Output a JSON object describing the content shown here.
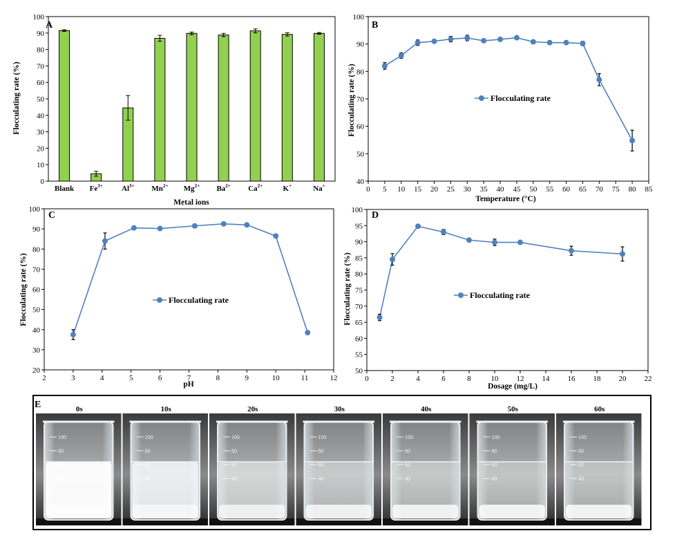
{
  "chart_data": [
    {
      "panel": "A",
      "type": "bar",
      "categories": [
        "Blank",
        "Fe",
        "Al",
        "Mn",
        "Mg",
        "Ba",
        "Ca",
        "K",
        "Na"
      ],
      "category_superscripts": [
        "",
        "3+",
        "3+",
        "2+",
        "2+",
        "2+",
        "2+",
        "+",
        "+"
      ],
      "values": [
        91.5,
        4.5,
        44.5,
        86.8,
        89.8,
        88.8,
        91.3,
        89.2,
        89.8
      ],
      "errors": [
        0.5,
        1.5,
        7.5,
        1.8,
        0.8,
        1.0,
        1.2,
        1.0,
        0.5
      ],
      "xlabel": "Metal ions",
      "ylabel": "Flocculating rate (%)",
      "ylim": [
        0,
        100
      ],
      "yticks": [
        0,
        10,
        20,
        30,
        40,
        50,
        60,
        70,
        80,
        90,
        100
      ],
      "bar_color": "#92d050"
    },
    {
      "panel": "B",
      "type": "line",
      "x": [
        5,
        10,
        15,
        20,
        25,
        30,
        35,
        40,
        45,
        50,
        55,
        60,
        65,
        70,
        80
      ],
      "values": [
        82,
        85.8,
        90.5,
        91,
        91.8,
        92.2,
        91.2,
        91.7,
        92.3,
        90.8,
        90.5,
        90.5,
        90.2,
        77,
        54.8
      ],
      "errors": [
        1.2,
        1.0,
        1.0,
        0.5,
        1.0,
        1.0,
        0.5,
        0.5,
        0.5,
        0.4,
        0.4,
        0.4,
        0.8,
        2.2,
        3.8
      ],
      "xlabel": "Temperature (°C)",
      "ylabel": "Flocculating rate (%)",
      "xlim": [
        0,
        85
      ],
      "ylim": [
        40,
        100
      ],
      "xticks": [
        0,
        5,
        10,
        15,
        20,
        25,
        30,
        35,
        40,
        45,
        50,
        55,
        60,
        65,
        70,
        75,
        80,
        85
      ],
      "yticks": [
        40,
        50,
        60,
        70,
        80,
        90,
        100
      ],
      "legend": "Flocculating rate",
      "line_color": "#4f81bd"
    },
    {
      "panel": "C",
      "type": "line",
      "x": [
        3,
        4.1,
        5.1,
        6,
        7.2,
        8.2,
        9,
        10,
        11.1
      ],
      "values": [
        37.5,
        84,
        90.5,
        90.2,
        91.5,
        92.5,
        92,
        86.5,
        38.5
      ],
      "errors": [
        2.5,
        4.0,
        0.5,
        0.5,
        0.5,
        0.5,
        0.5,
        0.5,
        0.5
      ],
      "xlabel": "pH",
      "ylabel": "Flocculating rate (%)",
      "xlim": [
        2,
        12
      ],
      "ylim": [
        20,
        100
      ],
      "xticks": [
        2,
        3,
        4,
        5,
        6,
        7,
        8,
        9,
        10,
        11,
        12
      ],
      "yticks": [
        20,
        30,
        40,
        50,
        60,
        70,
        80,
        90,
        100
      ],
      "legend": "Flocculating rate",
      "line_color": "#4f81bd"
    },
    {
      "panel": "D",
      "type": "line",
      "x": [
        1,
        2,
        4,
        6,
        8,
        10,
        12,
        16,
        20
      ],
      "values": [
        66.5,
        84.5,
        94.8,
        93,
        90.5,
        89.8,
        89.8,
        87.2,
        86.2
      ],
      "errors": [
        1.0,
        1.8,
        0.4,
        0.8,
        0.4,
        1.0,
        0.4,
        1.4,
        2.2
      ],
      "xlabel": "Dosage (mg/L)",
      "ylabel": "Flocculating rate (%)",
      "xlim": [
        0,
        22
      ],
      "ylim": [
        50,
        100
      ],
      "xticks": [
        0,
        2,
        4,
        6,
        8,
        10,
        12,
        14,
        16,
        18,
        20,
        22
      ],
      "yticks": [
        50,
        55,
        60,
        65,
        70,
        75,
        80,
        85,
        90,
        95,
        100
      ],
      "legend": "Flocculating rate",
      "line_color": "#4f81bd"
    }
  ],
  "photo_panel": {
    "label": "E",
    "time_labels": [
      "0s",
      "10s",
      "20s",
      "30s",
      "40s",
      "50s",
      "60s"
    ],
    "beaker_marks": [
      "100",
      "80",
      "60",
      "40"
    ],
    "beaker_unit": "approx",
    "turbidity": [
      1.0,
      0.82,
      0.5,
      0.3,
      0.25,
      0.2,
      0.18
    ]
  }
}
